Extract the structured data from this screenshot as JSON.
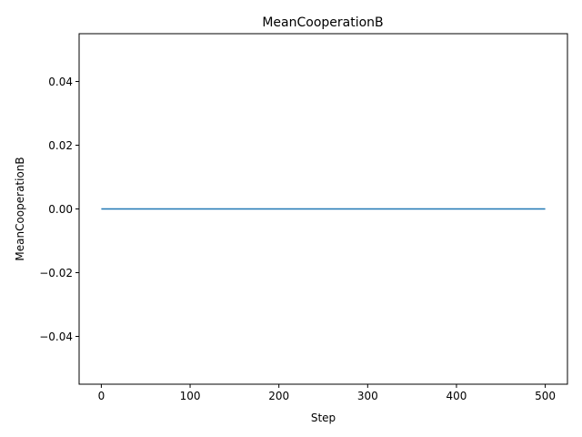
{
  "chart_data": {
    "type": "line",
    "title": "MeanCooperationB",
    "xlabel": "Step",
    "ylabel": "MeanCooperationB",
    "xlim": [
      -25,
      525
    ],
    "ylim": [
      -0.055,
      0.055
    ],
    "x_ticks": [
      0,
      100,
      200,
      300,
      400,
      500
    ],
    "x_tick_labels": [
      "0",
      "100",
      "200",
      "300",
      "400",
      "500"
    ],
    "y_ticks": [
      -0.04,
      -0.02,
      0.0,
      0.02,
      0.04
    ],
    "y_tick_labels": [
      "−0.04",
      "−0.02",
      "0.00",
      "0.02",
      "0.04"
    ],
    "grid": false,
    "series": [
      {
        "color": "#1f77b4",
        "x": [
          0,
          500
        ],
        "y": [
          0.0,
          0.0
        ]
      }
    ]
  }
}
